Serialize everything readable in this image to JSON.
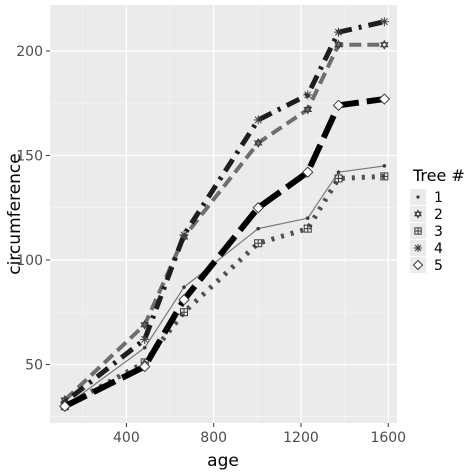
{
  "chart_data": {
    "type": "line",
    "xlabel": "age",
    "ylabel": "circumference",
    "xlim": [
      50,
      1640
    ],
    "ylim": [
      22,
      222
    ],
    "x_ticks": [
      400,
      800,
      1200,
      1600
    ],
    "y_ticks": [
      50,
      100,
      150,
      200
    ],
    "grid": true,
    "legend_title": "Tree #",
    "legend_position": "right",
    "x": [
      118,
      484,
      664,
      1004,
      1231,
      1372,
      1582
    ],
    "series": [
      {
        "name": "1",
        "values": [
          30,
          58,
          87,
          115,
          120,
          142,
          145
        ],
        "color": "#7a7a7a",
        "dash": "solid",
        "width": 1.2,
        "marker": "dot"
      },
      {
        "name": "2",
        "values": [
          33,
          69,
          111,
          156,
          172,
          203,
          203
        ],
        "color": "#6e6e6e",
        "dash": "dashed",
        "width": 4,
        "marker": "star-of-david"
      },
      {
        "name": "3",
        "values": [
          30,
          51,
          75,
          108,
          115,
          139,
          140
        ],
        "color": "#505050",
        "dash": "dotted",
        "width": 5,
        "marker": "square-plus"
      },
      {
        "name": "4",
        "values": [
          32,
          62,
          112,
          167,
          179,
          209,
          214
        ],
        "color": "#1e1e1e",
        "dash": "dotdash",
        "width": 5,
        "marker": "asterisk"
      },
      {
        "name": "5",
        "values": [
          30,
          49,
          81,
          125,
          142,
          174,
          177
        ],
        "color": "#000000",
        "dash": "longdash",
        "width": 6,
        "marker": "diamond"
      }
    ]
  }
}
